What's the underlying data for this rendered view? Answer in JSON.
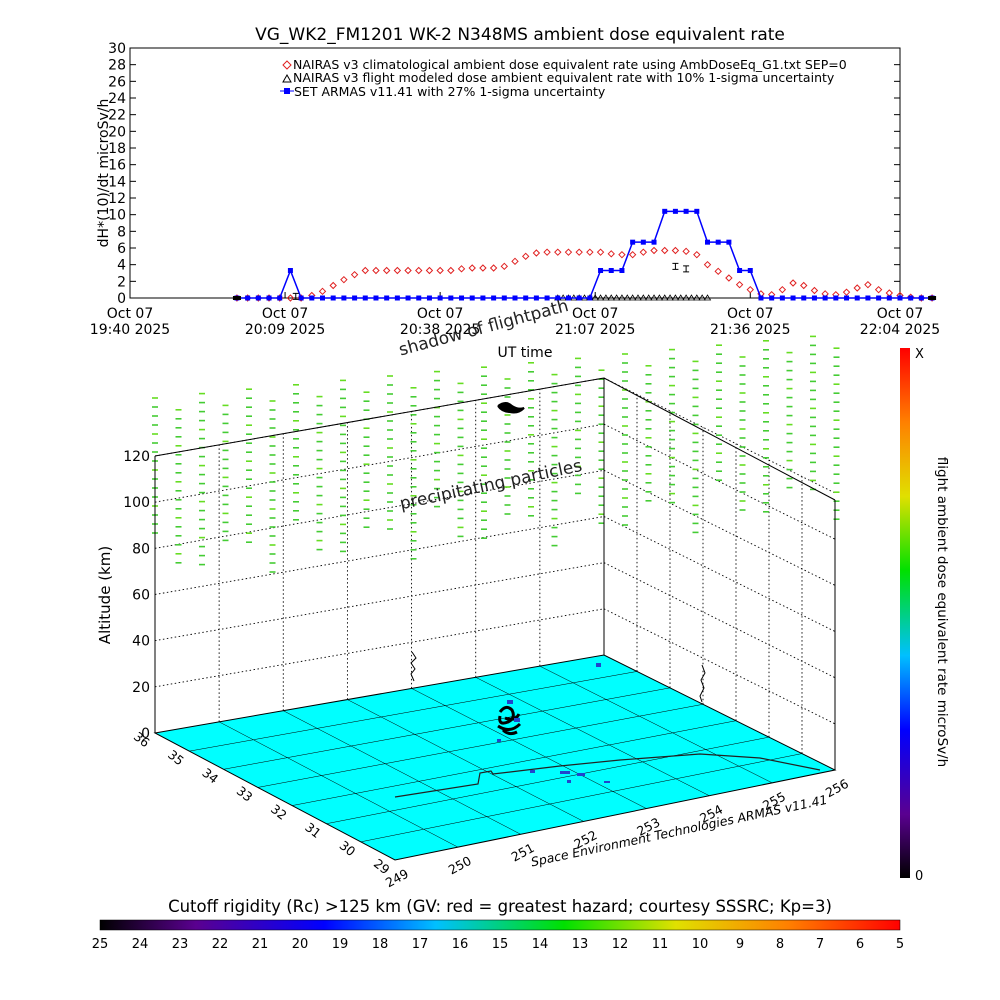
{
  "title": "VG_WK2_FM1201   WK-2 N348MS ambient dose equivalent rate",
  "chart_data": [
    {
      "type": "line",
      "ylabel": "dH*(10)/dt microSv/h",
      "xlabel": "UT time",
      "yticks": [
        0,
        2,
        4,
        6,
        8,
        10,
        12,
        14,
        16,
        18,
        20,
        22,
        24,
        26,
        28,
        30
      ],
      "ylim": [
        0,
        30
      ],
      "xlim": [
        "2025-10-07 19:40",
        "2025-10-07 22:04"
      ],
      "xticks": [
        {
          "line1": "Oct 07",
          "line2": "19:40 2025"
        },
        {
          "line1": "Oct 07",
          "line2": "20:09 2025"
        },
        {
          "line1": "Oct 07",
          "line2": "20:38 2025"
        },
        {
          "line1": "Oct 07",
          "line2": "21:07 2025"
        },
        {
          "line1": "Oct 07",
          "line2": "21:36 2025"
        },
        {
          "line1": "Oct 07",
          "line2": "22:04 2025"
        }
      ],
      "legend_placement": "top-right",
      "series": [
        {
          "name": "NAIRAS v3 climatological ambient dose equivalent rate using AmbDoseEq_G1.txt SEP=0",
          "marker": "diamond",
          "color": "#e02020",
          "x": [
            0,
            2,
            4,
            6,
            8,
            10,
            12,
            14,
            16,
            18,
            20,
            22,
            24,
            26,
            28,
            30,
            32,
            34,
            36,
            38,
            40,
            42,
            44,
            46,
            48,
            50,
            52,
            54,
            56,
            58,
            60,
            62,
            64,
            66,
            68,
            70,
            72,
            74,
            76,
            78,
            80,
            82,
            84,
            86,
            88,
            90,
            92,
            94,
            96,
            98,
            100,
            102,
            104,
            106,
            108,
            110,
            112,
            114,
            116,
            118,
            120,
            122,
            124,
            126,
            128,
            130
          ],
          "y": [
            0,
            0,
            0,
            0,
            0,
            0,
            0,
            0.3,
            0.8,
            1.5,
            2.2,
            2.8,
            3.3,
            3.3,
            3.3,
            3.3,
            3.3,
            3.3,
            3.3,
            3.3,
            3.3,
            3.5,
            3.6,
            3.6,
            3.6,
            3.8,
            4.4,
            5.0,
            5.4,
            5.5,
            5.5,
            5.5,
            5.5,
            5.5,
            5.5,
            5.3,
            5.2,
            5.2,
            5.5,
            5.7,
            5.7,
            5.7,
            5.6,
            5.2,
            4.0,
            3.2,
            2.4,
            1.6,
            1.0,
            0.5,
            0.4,
            1.0,
            1.8,
            1.5,
            0.9,
            0.5,
            0.4,
            0.7,
            1.2,
            1.6,
            1.0,
            0.6,
            0.3,
            0.1,
            0,
            0
          ]
        },
        {
          "name": "NAIRAS v3 flight modeled dose ambient equivalent rate with 10% 1-sigma uncertainty",
          "marker": "triangle",
          "color": "#000000",
          "x": [
            60,
            61,
            62,
            63,
            64,
            65,
            66,
            67,
            68,
            69,
            70,
            71,
            72,
            73,
            74,
            75,
            76,
            77,
            78,
            79,
            80,
            81,
            82,
            83,
            84,
            85,
            86,
            87,
            88
          ],
          "y": [
            0,
            0,
            0,
            0,
            0,
            0,
            0,
            0,
            0,
            0,
            0,
            0,
            0,
            0,
            0,
            0,
            0,
            0,
            0,
            0,
            0,
            0,
            0,
            0,
            0,
            0,
            0,
            0,
            0
          ]
        },
        {
          "name": "SET ARMAS v11.41 with 27% 1-sigma uncertainty",
          "marker": "square",
          "color": "#0000ff",
          "x": [
            0,
            2,
            4,
            6,
            8,
            10,
            12,
            14,
            16,
            18,
            20,
            22,
            24,
            26,
            28,
            30,
            32,
            34,
            36,
            38,
            40,
            42,
            44,
            46,
            48,
            50,
            52,
            54,
            56,
            58,
            60,
            62,
            64,
            66,
            68,
            70,
            72,
            74,
            76,
            78,
            80,
            82,
            84,
            86,
            88,
            90,
            92,
            94,
            96,
            98,
            100,
            102,
            104,
            106,
            108,
            110,
            112,
            114,
            116,
            118,
            120,
            122,
            124,
            126,
            128,
            130
          ],
          "y": [
            0,
            0,
            0,
            0,
            0,
            3.3,
            0,
            0,
            0,
            0,
            0,
            0,
            0,
            0,
            0,
            0,
            0,
            0,
            0,
            0,
            0,
            0,
            0,
            0,
            0,
            0,
            0,
            0,
            0,
            0,
            0,
            0,
            0,
            0,
            3.3,
            3.3,
            3.3,
            6.7,
            6.7,
            6.7,
            10.4,
            10.4,
            10.4,
            10.4,
            6.7,
            6.7,
            6.7,
            3.3,
            3.3,
            0,
            0,
            0,
            0,
            0,
            0,
            0,
            0,
            0,
            0,
            0,
            0,
            0,
            0,
            0,
            0,
            0
          ]
        }
      ]
    },
    {
      "type": "scatter",
      "zlabel": "Altitude (km)",
      "zticks": [
        0,
        20,
        40,
        60,
        80,
        100,
        120
      ],
      "lon_ticks": [
        249,
        250,
        251,
        252,
        253,
        254,
        255,
        256
      ],
      "lat_ticks": [
        29,
        30,
        31,
        32,
        33,
        34,
        35,
        36
      ],
      "footer": "Space Environment Technologies ARMAS v11.41",
      "annotations": [
        "shadow of flightpath",
        "precipitating particles"
      ],
      "colorbar": {
        "label": "flight ambient dose equivalent rate microSv/h",
        "top": "X",
        "bottom": "0"
      }
    },
    {
      "type": "heatmap",
      "title": "Cutoff rigidity (Rc) >125 km (GV: red = greatest hazard; courtesy SSSRC; Kp=3)",
      "ticks": [
        25,
        24,
        23,
        22,
        21,
        20,
        19,
        18,
        17,
        16,
        15,
        14,
        13,
        12,
        11,
        10,
        9,
        8,
        7,
        6,
        5
      ]
    }
  ]
}
